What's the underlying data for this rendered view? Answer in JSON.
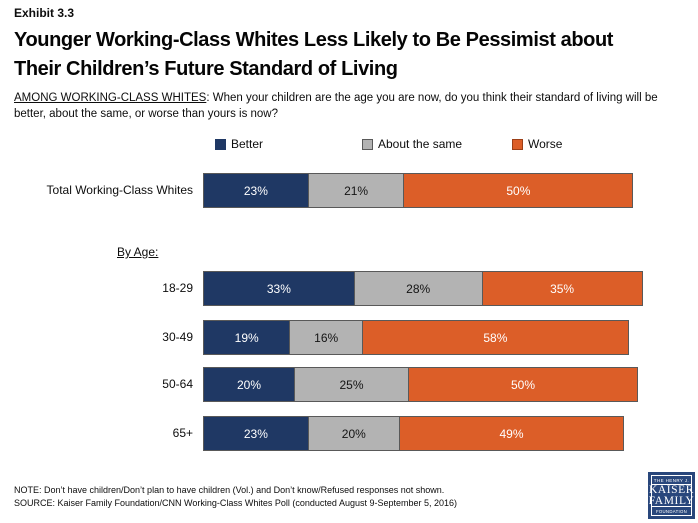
{
  "exhibit": "Exhibit 3.3",
  "title_line1": "Younger Working-Class Whites Less Likely to Be Pessimist about",
  "title_line2": "Their Children’s Future Standard of Living",
  "question": {
    "lead": "AMONG WORKING-CLASS WHITES",
    "rest": ": When your children are the age you are now, do you think their standard of living will be better, about the same, or worse than yours is now?"
  },
  "section_label": "By Age:",
  "note": "NOTE: Don’t have children/Don’t plan to have children (Vol.) and Don’t know/Refused responses not shown.",
  "source": "SOURCE: Kaiser Family Foundation/CNN Working-Class Whites Poll (conducted August 9-September 5, 2016)",
  "logo": {
    "line1": "THE HENRY J.",
    "line2": "KAISER",
    "line3": "FAMILY",
    "line4": "FOUNDATION"
  },
  "chart_data": {
    "type": "bar",
    "orientation": "horizontal-stacked",
    "title": "Younger Working-Class Whites Less Likely to Be Pessimist about Their Children’s Future Standard of Living",
    "legend": [
      "Better",
      "About the same",
      "Worse"
    ],
    "legend_position": "top",
    "xlabel": "",
    "ylabel": "",
    "xlim": [
      0,
      100
    ],
    "grid": false,
    "colors": {
      "better": "#1f3864",
      "about_same": "#b3b3b3",
      "worse": "#dc5e28"
    },
    "categories": [
      "Total Working-Class Whites",
      "18-29",
      "30-49",
      "50-64",
      "65+"
    ],
    "series": [
      {
        "name": "Better",
        "values": [
          23,
          33,
          19,
          20,
          23
        ]
      },
      {
        "name": "About the same",
        "values": [
          21,
          28,
          16,
          25,
          20
        ]
      },
      {
        "name": "Worse",
        "values": [
          50,
          35,
          58,
          50,
          49
        ]
      }
    ],
    "rows": [
      {
        "label": "Total Working-Class Whites",
        "values": [
          23,
          21,
          50
        ],
        "labels": [
          "23%",
          "21%",
          "50%"
        ]
      },
      {
        "label": "18-29",
        "values": [
          33,
          28,
          35
        ],
        "labels": [
          "33%",
          "28%",
          "35%"
        ]
      },
      {
        "label": "30-49",
        "values": [
          19,
          16,
          58
        ],
        "labels": [
          "19%",
          "16%",
          "58%"
        ]
      },
      {
        "label": "50-64",
        "values": [
          20,
          25,
          50
        ],
        "labels": [
          "20%",
          "25%",
          "50%"
        ]
      },
      {
        "label": "65+",
        "values": [
          23,
          20,
          49
        ],
        "labels": [
          "23%",
          "20%",
          "49%"
        ]
      }
    ]
  }
}
